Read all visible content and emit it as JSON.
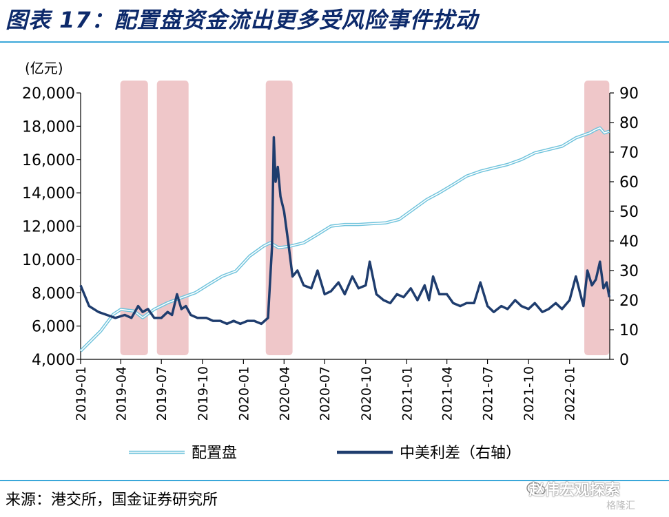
{
  "title": "图表 17：配置盘资金流出更多受风险事件扰动",
  "source": "来源：港交所，国金证券研究所",
  "watermark": "赵伟宏观探索",
  "watermark_sub": "格隆汇",
  "colors": {
    "left_series": "#6fc3dc",
    "right_series": "#1f3d6e",
    "shade": "#efc7c9",
    "title": "#0d2a6b",
    "rule": "#3aa7d9"
  },
  "chart_data": {
    "type": "line",
    "unit_label": "(亿元)",
    "x_ticks": [
      "2019-01",
      "2019-04",
      "2019-07",
      "2019-10",
      "2020-01",
      "2020-04",
      "2020-07",
      "2020-10",
      "2021-01",
      "2021-04",
      "2021-07",
      "2021-10",
      "2022-01"
    ],
    "y_left": {
      "min": 4000,
      "max": 20000,
      "ticks": [
        "4,000",
        "6,000",
        "8,000",
        "10,000",
        "12,000",
        "14,000",
        "16,000",
        "18,000",
        "20,000"
      ]
    },
    "y_right": {
      "min": 0,
      "max": 90,
      "ticks": [
        "0",
        "10",
        "20",
        "30",
        "40",
        "50",
        "60",
        "70",
        "80",
        "90"
      ]
    },
    "shaded_ranges": [
      [
        "2019-03-31",
        "2019-06-01"
      ],
      [
        "2019-06-21",
        "2019-08-31"
      ],
      [
        "2020-02-20",
        "2020-04-20"
      ],
      [
        "2022-02-03",
        "2022-03-31"
      ]
    ],
    "series": [
      {
        "name": "配置盘",
        "axis": "left",
        "x": [
          "2019-01-01",
          "2019-02-15",
          "2019-03-15",
          "2019-04-01",
          "2019-05-01",
          "2019-05-20",
          "2019-06-15",
          "2019-07-15",
          "2019-08-15",
          "2019-09-15",
          "2019-10-15",
          "2019-11-15",
          "2019-12-15",
          "2020-01-15",
          "2020-02-15",
          "2020-03-01",
          "2020-03-20",
          "2020-04-15",
          "2020-05-15",
          "2020-06-15",
          "2020-07-15",
          "2020-08-15",
          "2020-09-15",
          "2020-10-15",
          "2020-11-15",
          "2020-12-15",
          "2021-01-15",
          "2021-02-15",
          "2021-03-15",
          "2021-04-15",
          "2021-05-15",
          "2021-06-15",
          "2021-07-15",
          "2021-08-15",
          "2021-09-15",
          "2021-10-15",
          "2021-11-15",
          "2021-12-15",
          "2022-01-15",
          "2022-02-15",
          "2022-03-01",
          "2022-03-10",
          "2022-03-20",
          "2022-03-31"
        ],
        "values": [
          4500,
          5700,
          6700,
          7000,
          6900,
          6500,
          7000,
          7400,
          7700,
          8000,
          8500,
          9000,
          9300,
          10200,
          10800,
          11000,
          10700,
          10800,
          11000,
          11500,
          12000,
          12100,
          12100,
          12150,
          12200,
          12400,
          13000,
          13600,
          14000,
          14500,
          15000,
          15300,
          15500,
          15700,
          16000,
          16400,
          16600,
          16800,
          17300,
          17600,
          17800,
          17900,
          17600,
          17700
        ]
      },
      {
        "name": "中美利差（右轴）",
        "axis": "right",
        "x": [
          "2019-01-01",
          "2019-01-20",
          "2019-02-10",
          "2019-03-01",
          "2019-03-20",
          "2019-04-10",
          "2019-04-25",
          "2019-05-10",
          "2019-05-20",
          "2019-06-01",
          "2019-06-15",
          "2019-07-01",
          "2019-07-15",
          "2019-07-25",
          "2019-08-05",
          "2019-08-15",
          "2019-08-25",
          "2019-09-05",
          "2019-09-20",
          "2019-10-10",
          "2019-10-25",
          "2019-11-10",
          "2019-11-25",
          "2019-12-10",
          "2019-12-25",
          "2020-01-10",
          "2020-01-25",
          "2020-02-10",
          "2020-02-25",
          "2020-03-05",
          "2020-03-09",
          "2020-03-13",
          "2020-03-18",
          "2020-03-24",
          "2020-04-01",
          "2020-04-10",
          "2020-04-20",
          "2020-05-01",
          "2020-05-15",
          "2020-06-01",
          "2020-06-15",
          "2020-07-01",
          "2020-07-15",
          "2020-08-01",
          "2020-08-15",
          "2020-09-01",
          "2020-09-15",
          "2020-10-01",
          "2020-10-10",
          "2020-10-25",
          "2020-11-10",
          "2020-11-25",
          "2020-12-10",
          "2020-12-25",
          "2021-01-10",
          "2021-01-25",
          "2021-02-10",
          "2021-02-20",
          "2021-03-01",
          "2021-03-15",
          "2021-04-01",
          "2021-04-15",
          "2021-05-01",
          "2021-05-15",
          "2021-06-01",
          "2021-06-15",
          "2021-07-01",
          "2021-07-15",
          "2021-08-01",
          "2021-08-15",
          "2021-09-01",
          "2021-09-15",
          "2021-10-01",
          "2021-10-15",
          "2021-11-01",
          "2021-11-15",
          "2021-12-01",
          "2021-12-15",
          "2022-01-01",
          "2022-01-15",
          "2022-02-01",
          "2022-02-10",
          "2022-02-20",
          "2022-03-01",
          "2022-03-10",
          "2022-03-18",
          "2022-03-25",
          "2022-03-31"
        ],
        "values": [
          25,
          18,
          16,
          15,
          14,
          15,
          14,
          18,
          16,
          17,
          14,
          14,
          16,
          15,
          22,
          17,
          18,
          15,
          14,
          14,
          13,
          13,
          12,
          13,
          12,
          13,
          13,
          12,
          14,
          38,
          75,
          60,
          65,
          55,
          50,
          40,
          28,
          30,
          25,
          24,
          30,
          22,
          23,
          26,
          22,
          28,
          24,
          25,
          33,
          22,
          20,
          19,
          22,
          21,
          24,
          20,
          25,
          20,
          28,
          22,
          22,
          19,
          18,
          19,
          19,
          26,
          18,
          16,
          18,
          17,
          20,
          18,
          17,
          19,
          16,
          17,
          19,
          17,
          20,
          28,
          18,
          30,
          25,
          27,
          33,
          24,
          26,
          21
        ]
      }
    ],
    "legend": [
      "配置盘",
      "中美利差（右轴）"
    ]
  }
}
